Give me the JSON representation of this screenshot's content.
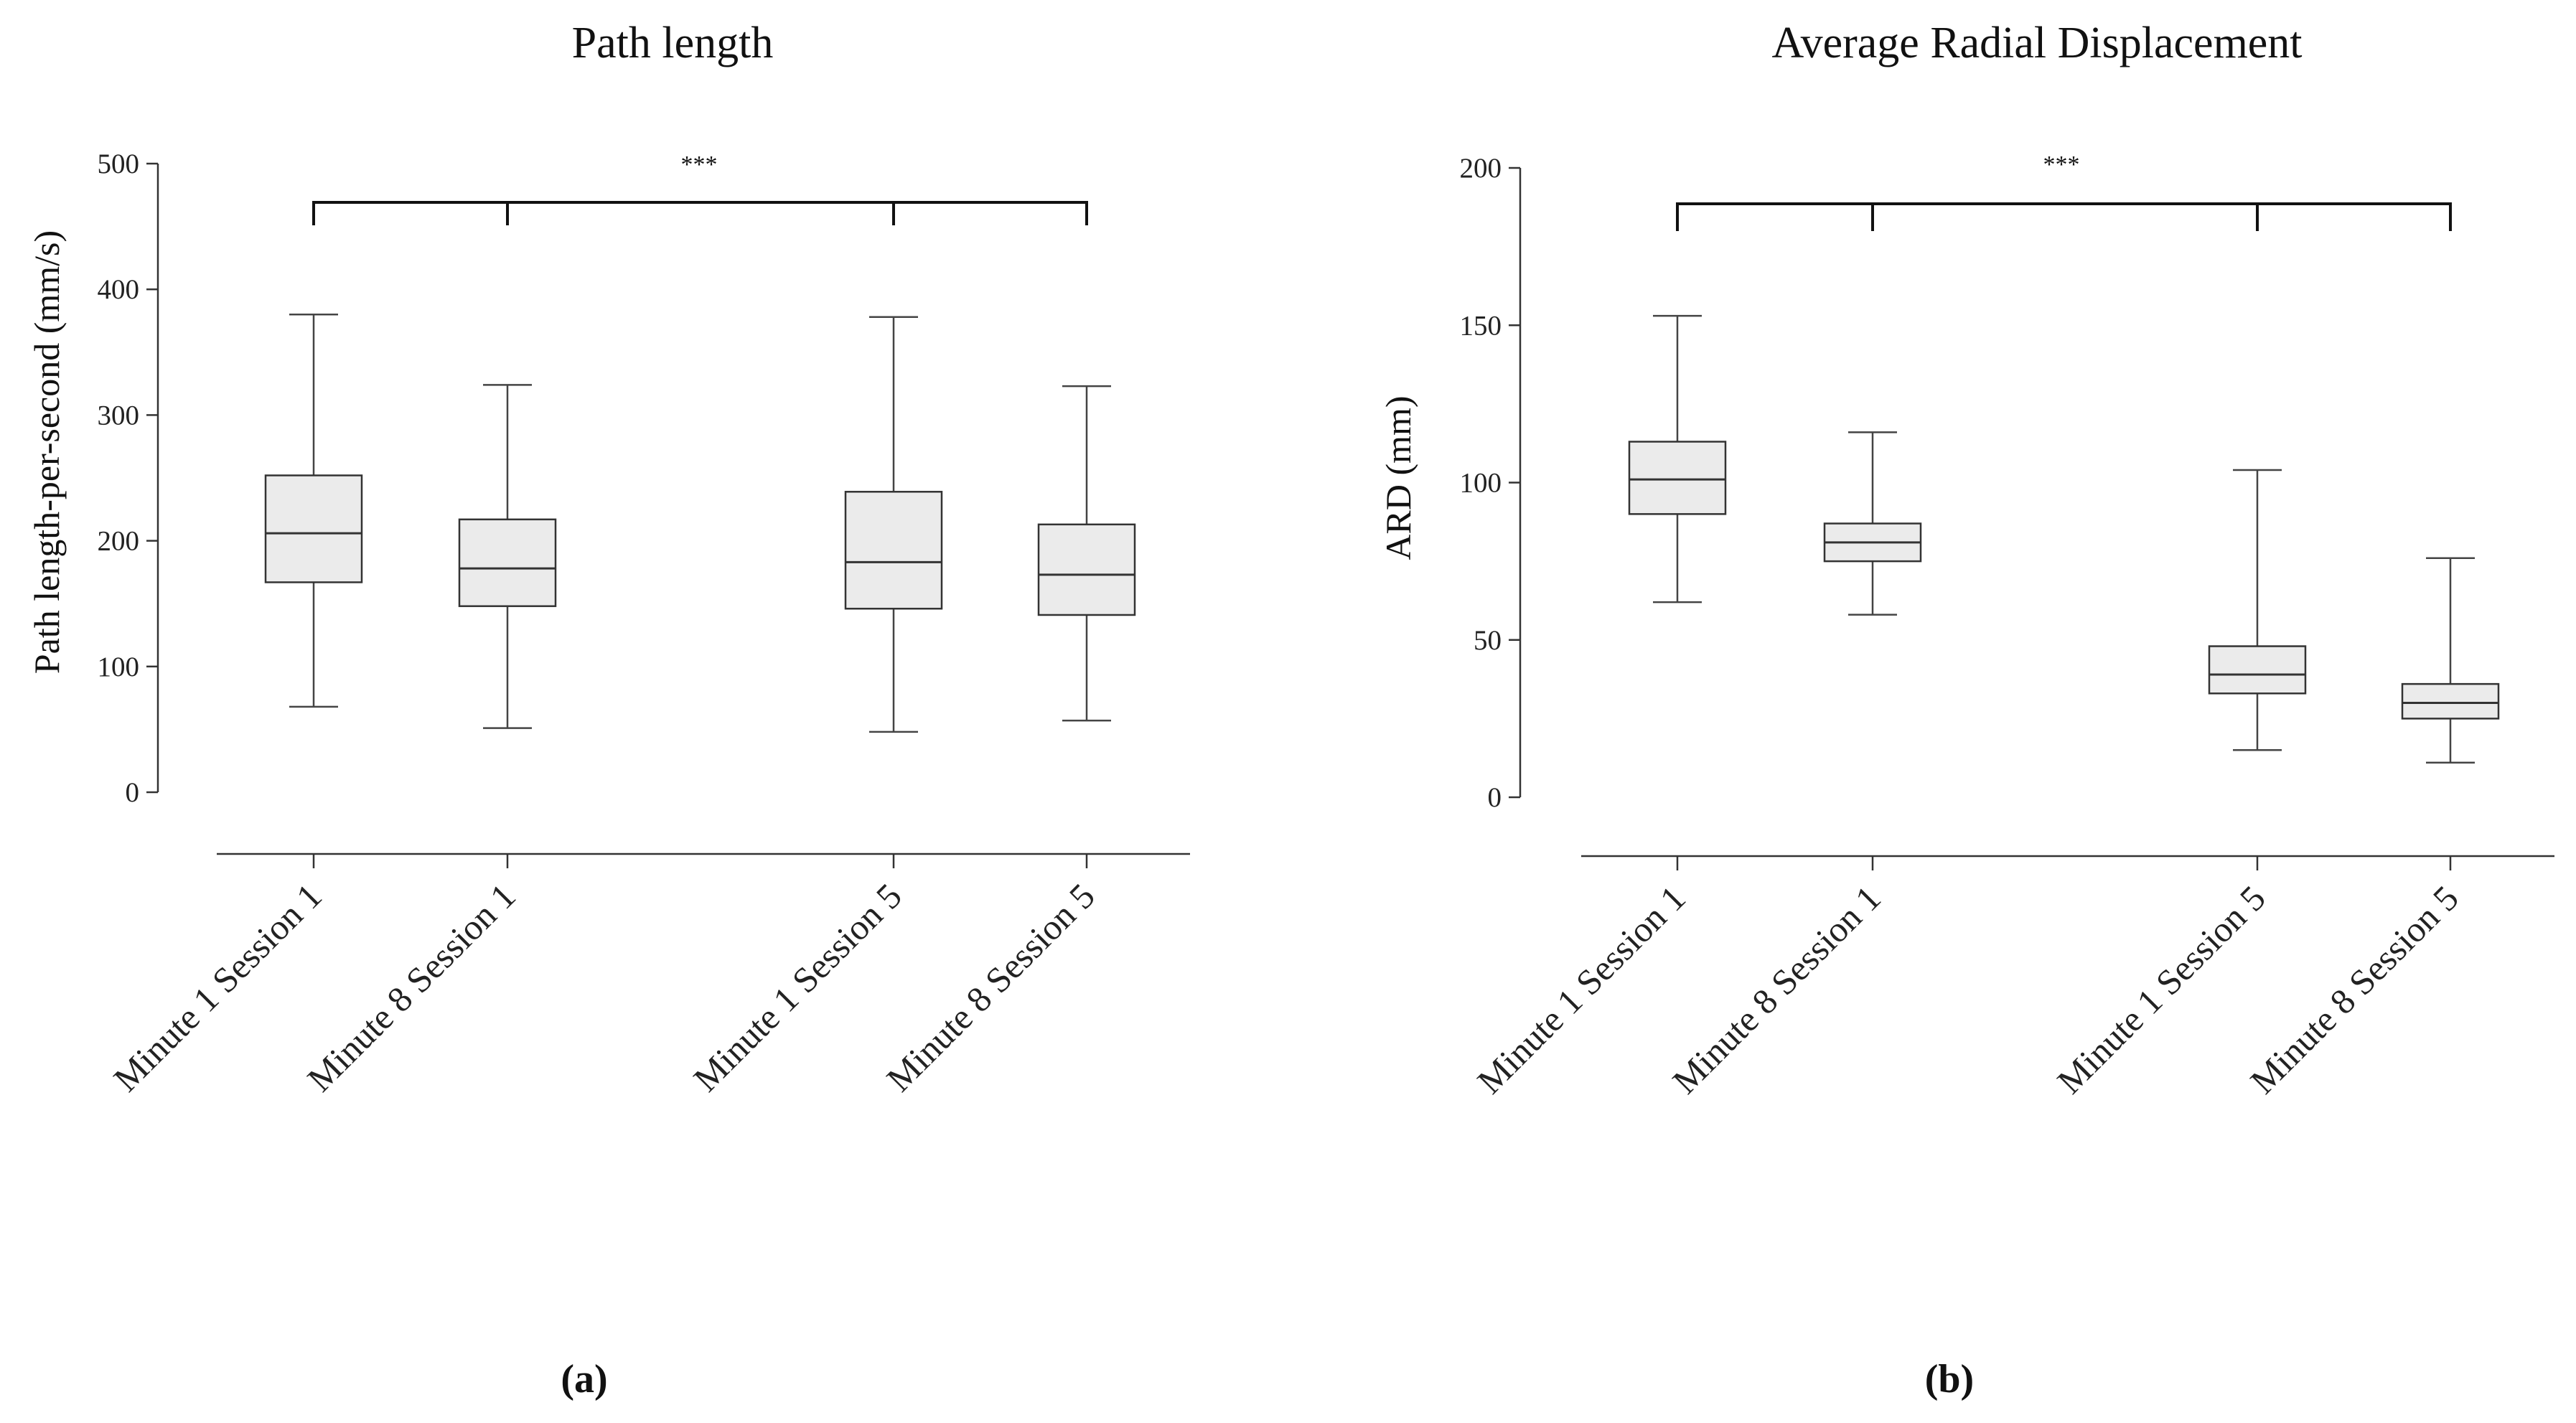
{
  "chart_data": [
    {
      "type": "box",
      "title": "Path length",
      "ylabel": "Path length-per-second (mm/s)",
      "xlabel": "",
      "ylim": [
        0,
        500
      ],
      "yticks": [
        0,
        100,
        200,
        300,
        400,
        500
      ],
      "grid": false,
      "panel_label": "(a)",
      "significance": "***",
      "categories": [
        "Minute 1 Session 1",
        "Minute 8 Session 1",
        "Minute 1 Session 5",
        "Minute 8 Session 5"
      ],
      "boxes": [
        {
          "label": "Minute 1 Session 1",
          "min": 68,
          "q1": 167,
          "median": 206,
          "q3": 252,
          "max": 380
        },
        {
          "label": "Minute 8 Session 1",
          "min": 51,
          "q1": 148,
          "median": 178,
          "q3": 217,
          "max": 324
        },
        {
          "label": "Minute 1 Session 5",
          "min": 48,
          "q1": 146,
          "median": 183,
          "q3": 239,
          "max": 378
        },
        {
          "label": "Minute 8 Session 5",
          "min": 57,
          "q1": 141,
          "median": 173,
          "q3": 213,
          "max": 323
        }
      ]
    },
    {
      "type": "box",
      "title": "Average Radial Displacement",
      "ylabel": "ARD (mm)",
      "xlabel": "",
      "ylim": [
        0,
        200
      ],
      "yticks": [
        0,
        50,
        100,
        150,
        200
      ],
      "grid": false,
      "panel_label": "(b)",
      "significance": "***",
      "categories": [
        "Minute 1 Session 1",
        "Minute 8 Session 1",
        "Minute 1 Session 5",
        "Minute 8 Session 5"
      ],
      "boxes": [
        {
          "label": "Minute 1 Session 1",
          "min": 62,
          "q1": 90,
          "median": 101,
          "q3": 113,
          "max": 153
        },
        {
          "label": "Minute 8 Session 1",
          "min": 58,
          "q1": 75,
          "median": 81,
          "q3": 87,
          "max": 116
        },
        {
          "label": "Minute 1 Session 5",
          "min": 15,
          "q1": 33,
          "median": 39,
          "q3": 48,
          "max": 104
        },
        {
          "label": "Minute 8 Session 5",
          "min": 11,
          "q1": 25,
          "median": 30,
          "q3": 36,
          "max": 76
        }
      ]
    }
  ]
}
